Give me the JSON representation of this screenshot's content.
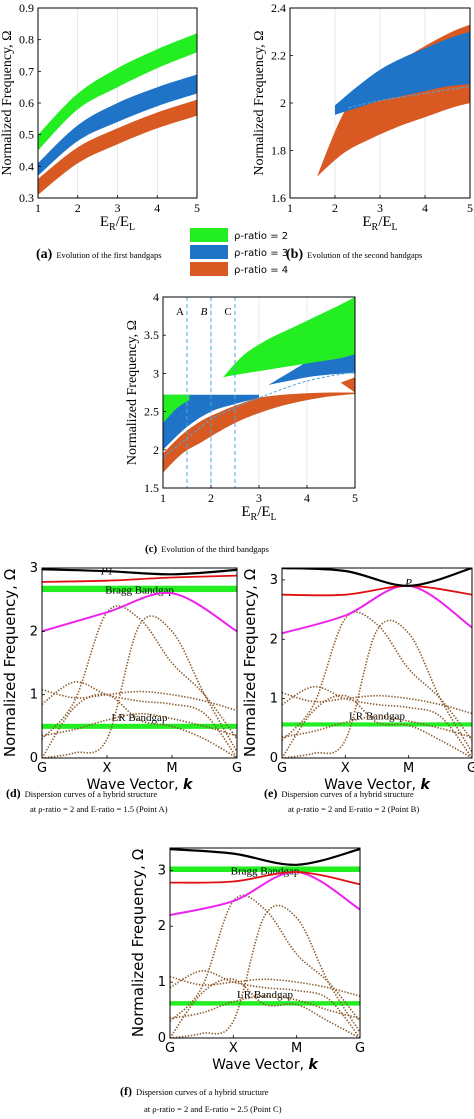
{
  "colors": {
    "green": "#22ee22",
    "blue": "#1f74c8",
    "orange": "#d85a22",
    "black": "#000000",
    "red": "#e01010",
    "magenta": "#ee22ee",
    "brown": "#8b5a2b",
    "grid": "#d8d8d8",
    "dash": "#4aa8e0"
  },
  "legend": {
    "entries": [
      "ρ-ratio = 2",
      "ρ-ratio = 3",
      "ρ-ratio = 4"
    ]
  },
  "chart_data": [
    {
      "id": "a",
      "type": "area",
      "caption": {
        "tag": "(a)",
        "text": "Evolution of the first bandgaps"
      },
      "xlabel": "E",
      "xlabel_sub1": "R",
      "xlabel_mid": "/E",
      "xlabel_sub2": "L",
      "ylabel": "Normalized Frequency, Ω",
      "xlim": [
        1,
        5
      ],
      "ylim": [
        0.3,
        0.9
      ],
      "xticks": [
        "1",
        "2",
        "3",
        "4",
        "5"
      ],
      "yticks": [
        "0.3",
        "0.4",
        "0.5",
        "0.6",
        "0.7",
        "0.8",
        "0.9"
      ],
      "grid": true,
      "series": [
        {
          "x": [
            1,
            2,
            3,
            4,
            5
          ],
          "lower": [
            0.45,
            0.58,
            0.65,
            0.71,
            0.76
          ],
          "upper": [
            0.5,
            0.63,
            0.71,
            0.77,
            0.82
          ],
          "color": "green"
        },
        {
          "x": [
            1,
            2,
            3,
            4,
            5
          ],
          "lower": [
            0.37,
            0.48,
            0.54,
            0.59,
            0.63
          ],
          "upper": [
            0.41,
            0.53,
            0.6,
            0.65,
            0.69
          ],
          "color": "blue"
        },
        {
          "x": [
            1,
            2,
            3,
            4,
            5
          ],
          "lower": [
            0.31,
            0.41,
            0.47,
            0.52,
            0.56
          ],
          "upper": [
            0.36,
            0.46,
            0.52,
            0.57,
            0.61
          ],
          "color": "orange"
        }
      ]
    },
    {
      "id": "b",
      "type": "area",
      "caption": {
        "tag": "(b)",
        "text": "Evolution of the second bandgaps"
      },
      "xlabel": "E",
      "xlabel_sub1": "R",
      "xlabel_mid": "/E",
      "xlabel_sub2": "L",
      "ylabel": "Normalized Frequency, Ω",
      "xlim": [
        1,
        5
      ],
      "ylim": [
        1.6,
        2.4
      ],
      "xticks": [
        "1",
        "2",
        "3",
        "4",
        "5"
      ],
      "yticks": [
        "1.6",
        "1.8",
        "2",
        "2.2",
        "2.4"
      ],
      "grid": true,
      "series": [
        {
          "x": [
            1.6,
            2.2,
            2.8,
            3.4,
            4,
            4.6,
            5
          ],
          "lower": [
            1.69,
            1.79,
            1.85,
            1.9,
            1.94,
            1.98,
            2.0
          ],
          "upper": [
            1.69,
            1.96,
            2.09,
            2.17,
            2.24,
            2.3,
            2.33
          ],
          "color": "orange"
        },
        {
          "x": [
            2,
            2.5,
            3,
            3.5,
            4,
            4.5,
            5
          ],
          "lower": [
            1.95,
            1.98,
            2.01,
            2.03,
            2.05,
            2.07,
            2.08
          ],
          "upper": [
            1.99,
            2.07,
            2.14,
            2.19,
            2.23,
            2.27,
            2.3
          ],
          "color": "blue"
        }
      ],
      "dashed": {
        "x": [
          2.3,
          3,
          4,
          5
        ],
        "y": [
          1.98,
          2.01,
          2.04,
          2.07
        ]
      }
    },
    {
      "id": "c",
      "type": "area",
      "caption": {
        "tag": "(c)",
        "text": "Evolution of the third bandgaps"
      },
      "xlabel": "E",
      "xlabel_sub1": "R",
      "xlabel_mid": "/E",
      "xlabel_sub2": "L",
      "ylabel": "Normalized Frequency, Ω",
      "xlim": [
        1,
        5
      ],
      "ylim": [
        1.5,
        4
      ],
      "xticks": [
        "1",
        "2",
        "3",
        "4",
        "5"
      ],
      "yticks": [
        "1.5",
        "2",
        "2.5",
        "3",
        "3.5",
        "4"
      ],
      "grid": true,
      "series": [
        {
          "x": [
            1,
            1.4,
            1.8,
            2.2,
            2.6,
            3,
            3.5,
            4,
            4.5,
            5
          ],
          "lower": [
            1.7,
            1.95,
            2.1,
            2.25,
            2.38,
            2.48,
            2.58,
            2.65,
            2.7,
            2.73
          ],
          "upper": [
            1.95,
            2.2,
            2.38,
            2.5,
            2.6,
            2.68,
            2.72,
            2.74,
            2.75,
            2.75
          ],
          "color": "orange"
        },
        {
          "x": [
            1,
            1.5,
            2,
            2.5,
            3
          ],
          "lower": [
            2.0,
            2.3,
            2.5,
            2.6,
            2.68
          ],
          "upper": [
            2.72,
            2.72,
            2.72,
            2.72,
            2.72
          ],
          "color": "blue"
        },
        {
          "x": [
            1,
            1.3,
            1.55
          ],
          "lower": [
            2.35,
            2.55,
            2.65
          ],
          "upper": [
            2.72,
            2.72,
            2.72
          ],
          "color": "green"
        },
        {
          "x": [
            3.2,
            3.6,
            4,
            4.4,
            4.8,
            5
          ],
          "lower": [
            2.85,
            2.9,
            2.95,
            2.98,
            3.0,
            3.0
          ],
          "upper": [
            2.85,
            3.0,
            3.15,
            3.28,
            3.38,
            3.43
          ],
          "color": "blue"
        },
        {
          "x": [
            2.25,
            2.7,
            3.2,
            3.7,
            4.2,
            4.7,
            5
          ],
          "lower": [
            2.95,
            3.0,
            3.05,
            3.1,
            3.15,
            3.2,
            3.25
          ],
          "upper": [
            2.95,
            3.25,
            3.45,
            3.6,
            3.75,
            3.9,
            4.0
          ],
          "color": "green"
        },
        {
          "x": [
            4.7,
            5
          ],
          "lower": [
            2.75,
            2.75
          ],
          "upper": [
            2.88,
            2.95
          ],
          "color": "orange"
        }
      ],
      "markers": [
        {
          "label": "A",
          "x": 1.5
        },
        {
          "label": "B",
          "x": 2
        },
        {
          "label": "C",
          "x": 2.5
        }
      ],
      "dashed": {
        "x": [
          1,
          1.5,
          2,
          2.5,
          3,
          4,
          5
        ],
        "y": [
          1.9,
          2.15,
          2.4,
          2.55,
          2.68,
          2.9,
          3.02
        ]
      }
    },
    {
      "id": "d",
      "type": "line",
      "caption": {
        "tag": "(d)",
        "line1": "Dispersion curves of a hybrid structure",
        "line2": "at ρ-ratio = 2 and E-ratio = 1.5 (Point A)"
      },
      "xlabel": "Wave Vector, ",
      "xlabel_k": "k",
      "ylabel": "Normalized Frequency, Ω",
      "xlim": [
        0,
        3
      ],
      "ylim": [
        0,
        3
      ],
      "xticks": [
        "G",
        "X",
        "M",
        "G"
      ],
      "yticks": [
        "0",
        "1",
        "2",
        "3"
      ],
      "point_label": "P1",
      "point": [
        1,
        2.9
      ],
      "bands": [
        {
          "label": "Bragg Bandgap",
          "y": [
            2.62,
            2.72
          ]
        },
        {
          "label": "LR Bandgap",
          "y": [
            0.46,
            0.54
          ]
        }
      ],
      "black": [
        2.98,
        2.95,
        2.9,
        2.97
      ],
      "red": [
        2.78,
        2.8,
        2.85,
        2.88
      ],
      "magenta": [
        2.0,
        2.3,
        2.6,
        2.0
      ],
      "dotted": [
        [
          0.0,
          0.8,
          1.0,
          0.6,
          0.5,
          0.3,
          0.0
        ],
        [
          0.35,
          0.45,
          0.6,
          0.7,
          0.62,
          0.5,
          0.35
        ],
        [
          1.08,
          0.95,
          1.0,
          1.05,
          1.0,
          0.9,
          0.75
        ],
        [
          0.85,
          1.2,
          1.0,
          0.9,
          0.85,
          0.7,
          0.0
        ],
        [
          0.0,
          0.08,
          0.3,
          2.1,
          2.0,
          1.0,
          0.1
        ],
        [
          0.3,
          0.9,
          2.3,
          2.2,
          1.5,
          1.0,
          0.3
        ]
      ]
    },
    {
      "id": "e",
      "type": "line",
      "caption": {
        "tag": "(e)",
        "line1": "Dispersion curves of a hybrid structure",
        "line2": "at ρ-ratio = 2 and E-ratio = 2 (Point B)"
      },
      "xlabel": "Wave Vector, ",
      "xlabel_k": "k",
      "ylabel": "Normalized Frequency, Ω",
      "xlim": [
        0,
        3
      ],
      "ylim": [
        0,
        3.2
      ],
      "xticks": [
        "G",
        "X",
        "M",
        "G"
      ],
      "yticks": [
        "0",
        "1",
        "2",
        "3"
      ],
      "point_label": "P",
      "point": [
        2,
        2.9
      ],
      "bands": [
        {
          "label": "LR Bandgap",
          "y": [
            0.53,
            0.6
          ]
        }
      ],
      "black": [
        3.2,
        3.15,
        2.9,
        3.2
      ],
      "red": [
        2.75,
        2.75,
        2.9,
        2.75
      ],
      "magenta": [
        2.1,
        2.4,
        2.9,
        2.2
      ],
      "dotted": [
        [
          0.0,
          0.8,
          1.05,
          0.6,
          0.55,
          0.3,
          0.0
        ],
        [
          0.35,
          0.45,
          0.6,
          0.7,
          0.62,
          0.5,
          0.35
        ],
        [
          1.1,
          0.95,
          1.0,
          1.05,
          1.0,
          0.9,
          0.75
        ],
        [
          0.9,
          1.2,
          1.0,
          0.9,
          0.85,
          0.7,
          0.0
        ],
        [
          0.0,
          0.08,
          0.3,
          2.15,
          2.1,
          1.0,
          0.1
        ],
        [
          0.3,
          0.9,
          2.35,
          2.25,
          1.5,
          1.0,
          0.3
        ]
      ]
    },
    {
      "id": "f",
      "type": "line",
      "caption": {
        "tag": "(f)",
        "line1": "Dispersion curves of a hybrid structure",
        "line2": "at ρ-ratio = 2 and E-ratio = 2.5 (Point C)"
      },
      "xlabel": "Wave Vector, ",
      "xlabel_k": "k",
      "ylabel": "Normalized Frequency, Ω",
      "xlim": [
        0,
        3
      ],
      "ylim": [
        0,
        3.4
      ],
      "xticks": [
        "G",
        "X",
        "M",
        "G"
      ],
      "yticks": [
        "0",
        "1",
        "2",
        "3"
      ],
      "bands": [
        {
          "label": "Bragg Bandgap",
          "y": [
            2.97,
            3.07
          ]
        },
        {
          "label": "LR Bandgap",
          "y": [
            0.58,
            0.66
          ]
        }
      ],
      "black": [
        3.38,
        3.3,
        3.1,
        3.38
      ],
      "red": [
        2.78,
        2.8,
        2.97,
        2.75
      ],
      "magenta": [
        2.2,
        2.45,
        2.97,
        2.3
      ],
      "dotted": [
        [
          0.0,
          0.8,
          1.05,
          0.6,
          0.6,
          0.3,
          0.0
        ],
        [
          0.35,
          0.45,
          0.65,
          0.75,
          0.68,
          0.5,
          0.35
        ],
        [
          1.1,
          0.95,
          1.0,
          1.05,
          1.0,
          0.9,
          0.75
        ],
        [
          0.9,
          1.2,
          1.0,
          0.9,
          0.85,
          0.7,
          0.0
        ],
        [
          0.0,
          0.08,
          0.3,
          2.2,
          2.15,
          1.0,
          0.1
        ],
        [
          0.3,
          0.9,
          2.45,
          2.3,
          1.5,
          1.0,
          0.3
        ]
      ]
    }
  ]
}
